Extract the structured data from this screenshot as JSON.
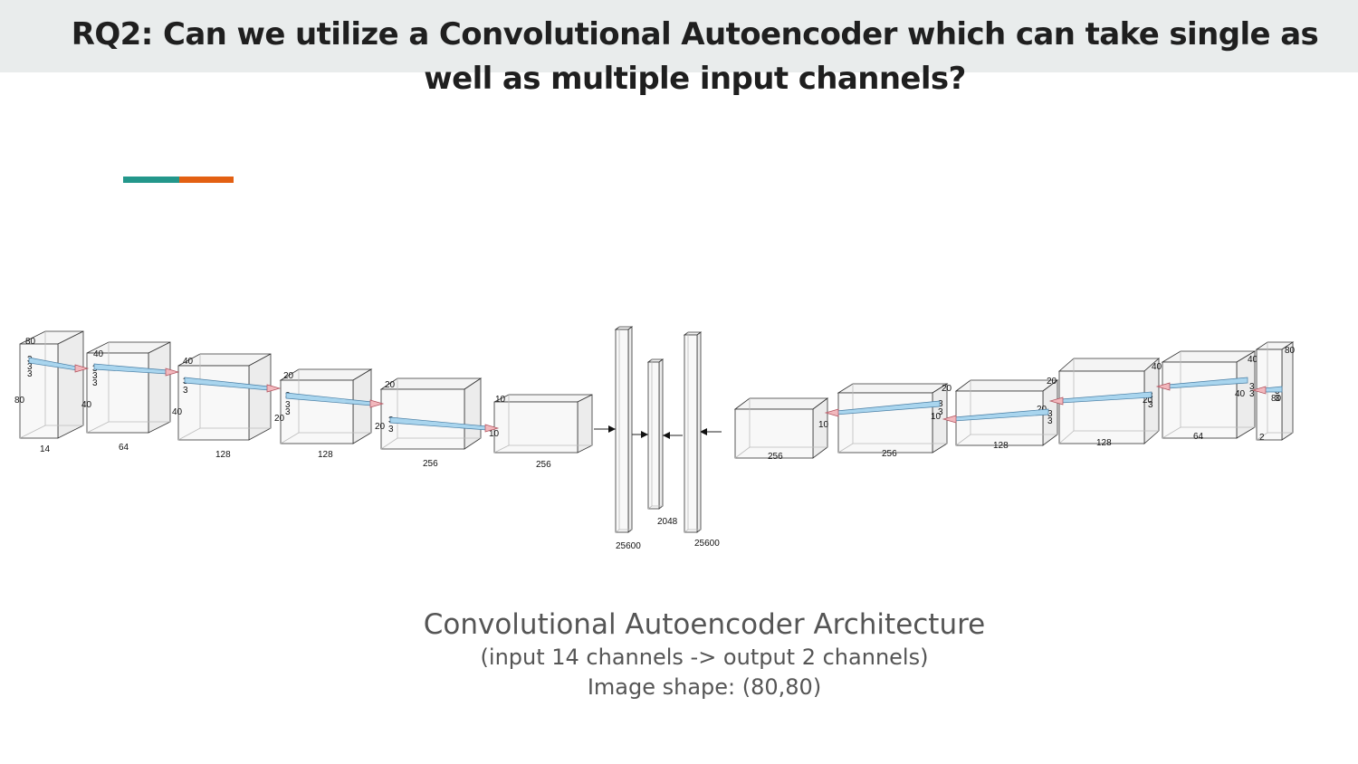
{
  "slide": {
    "title": "RQ2: Can we utilize a Convolutional Autoencoder which can take single as well as multiple input channels?",
    "accent_colors": [
      "#23978b",
      "#e36012"
    ],
    "title_band_color": "#e9ecec"
  },
  "diagram": {
    "encoder_blocks": [
      {
        "dims": [
          "80",
          "80",
          "14"
        ],
        "kernel": [
          "3",
          "3",
          "3"
        ]
      },
      {
        "dims": [
          "40",
          "40",
          "64"
        ],
        "kernel": [
          "3",
          "3",
          "3"
        ]
      },
      {
        "dims": [
          "40",
          "40",
          "128"
        ],
        "kernel": [
          "3",
          "3"
        ]
      },
      {
        "dims": [
          "20",
          "20",
          "128"
        ],
        "kernel": [
          "3",
          "3",
          "3"
        ]
      },
      {
        "dims": [
          "20",
          "20",
          "256"
        ],
        "kernel": [
          "3",
          "3"
        ]
      },
      {
        "dims": [
          "10",
          "10",
          "256"
        ],
        "kernel": []
      }
    ],
    "dense": [
      {
        "label": "25600"
      },
      {
        "label": "2048"
      },
      {
        "label": "25600"
      }
    ],
    "decoder_blocks": [
      {
        "dims": [
          "10",
          "256"
        ],
        "kernel": []
      },
      {
        "dims": [
          "20",
          "10",
          "256"
        ],
        "kernel": [
          "3",
          "3"
        ]
      },
      {
        "dims": [
          "20",
          "20",
          "128"
        ],
        "kernel": [
          "3",
          "3"
        ]
      },
      {
        "dims": [
          "40",
          "20",
          "128"
        ],
        "kernel": [
          "3",
          "3"
        ]
      },
      {
        "dims": [
          "40",
          "40",
          "64"
        ],
        "kernel": [
          "3",
          "3"
        ]
      },
      {
        "dims": [
          "80",
          "80",
          "2"
        ],
        "kernel": [
          "3",
          "3"
        ]
      }
    ]
  },
  "caption": {
    "line1": "Convolutional Autoencoder Architecture",
    "line2": "(input 14 channels -> output 2 channels)",
    "line3": "Image shape: (80,80)"
  }
}
